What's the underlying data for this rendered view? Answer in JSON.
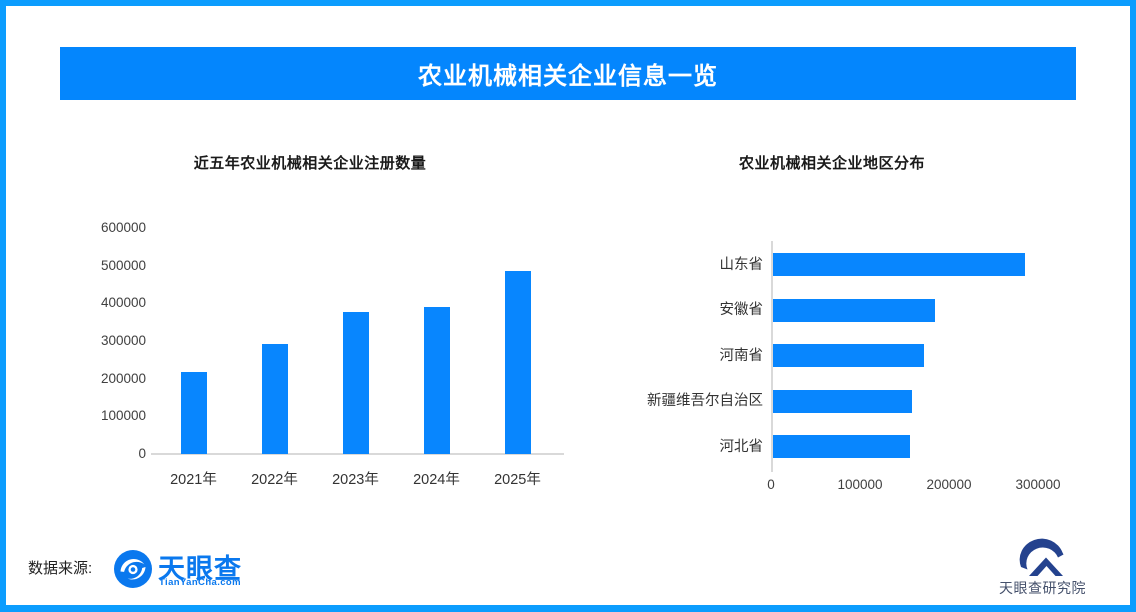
{
  "page": {
    "title": "农业机械相关企业信息一览",
    "frame_color": "#0c9dfe",
    "banner_color": "#0486fd",
    "bar_color": "#0886fe"
  },
  "chart_data": [
    {
      "type": "bar",
      "orientation": "vertical",
      "title": "近五年农业机械相关企业注册数量",
      "categories": [
        "2021年",
        "2022年",
        "2023年",
        "2024年",
        "2025年"
      ],
      "values": [
        218000,
        291000,
        376000,
        390000,
        486000
      ],
      "ylim": [
        0,
        600000
      ],
      "yticks": [
        0,
        100000,
        200000,
        300000,
        400000,
        500000,
        600000
      ],
      "grid": false,
      "legend": false
    },
    {
      "type": "bar",
      "orientation": "horizontal",
      "title": "农业机械相关企业地区分布",
      "categories": [
        "山东省",
        "安徽省",
        "河南省",
        "新疆维吾尔自治区",
        "河北省"
      ],
      "values": [
        283000,
        182000,
        170000,
        156000,
        154000
      ],
      "xlim": [
        0,
        340000
      ],
      "xticks": [
        0,
        100000,
        200000,
        300000
      ],
      "grid": false,
      "legend": false
    }
  ],
  "footer": {
    "source_label": "数据来源:",
    "tyc_logo_name": "天眼查",
    "tyc_logo_sub": "TianYanCha.com",
    "tyc_blue": "#0a78ee",
    "research_logo_name": "天眼查研究院",
    "research_navy": "#24428e"
  }
}
